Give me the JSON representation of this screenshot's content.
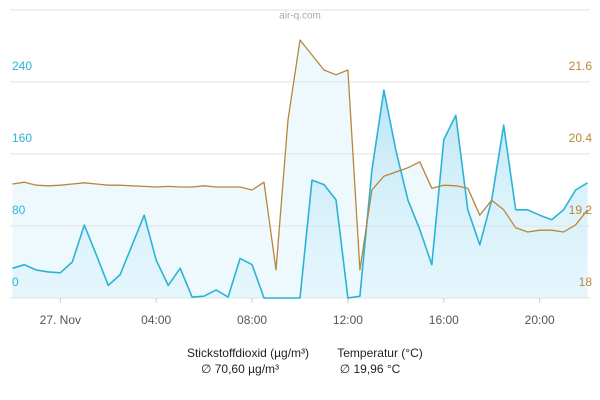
{
  "chart_data": {
    "type": "line",
    "title": "air-q.com",
    "x": [
      -2,
      -1.5,
      -1,
      -0.5,
      0,
      0.5,
      1,
      1.5,
      2,
      2.5,
      3,
      3.5,
      4,
      4.5,
      5,
      5.5,
      6,
      6.5,
      7,
      7.5,
      8,
      8.5,
      9,
      9.5,
      10,
      10.5,
      11,
      11.5,
      12,
      12.5,
      13,
      13.5,
      14,
      14.5,
      15,
      15.5,
      16,
      16.5,
      17,
      17.5,
      18,
      18.5,
      19,
      19.5,
      20,
      20.5,
      21,
      21.5,
      22
    ],
    "xlim": [
      -2.1,
      22.1
    ],
    "xticks": [
      {
        "value": 0,
        "label": "27. Nov"
      },
      {
        "value": 4,
        "label": "04:00"
      },
      {
        "value": 8,
        "label": "08:00"
      },
      {
        "value": 12,
        "label": "12:00"
      },
      {
        "value": 16,
        "label": "16:00"
      },
      {
        "value": 20,
        "label": "20:00"
      }
    ],
    "ylim": [
      0,
      320
    ],
    "yticks": [
      0,
      80,
      160,
      240
    ],
    "y2lim": [
      18,
      22.8
    ],
    "y2ticks": [
      18,
      19.2,
      20.4,
      21.6
    ],
    "grid": true,
    "series": [
      {
        "name": "Stickstoffdioxid (µg/m³)",
        "mean_label": "∅ 70,60 µg/m³",
        "color": "#2bb3d6",
        "axis": "y",
        "values": [
          33,
          37,
          31,
          29,
          28,
          40,
          81,
          48,
          14,
          26,
          59,
          92,
          42,
          14,
          33,
          1,
          2,
          9,
          1,
          44,
          37,
          0,
          0,
          0,
          0,
          131,
          126,
          109,
          0,
          2,
          142,
          231,
          164,
          109,
          76,
          37,
          176,
          203,
          98,
          59,
          109,
          192,
          98,
          98,
          92,
          87,
          98,
          120,
          128
        ]
      },
      {
        "name": "Temperatur (°C)",
        "mean_label": "∅ 19,96 °C",
        "color": "#b8863b",
        "axis": "y2",
        "values": [
          19.9,
          19.93,
          19.88,
          19.87,
          19.88,
          19.9,
          19.92,
          19.9,
          19.88,
          19.88,
          19.87,
          19.86,
          19.85,
          19.86,
          19.85,
          19.85,
          19.87,
          19.85,
          19.85,
          19.85,
          19.8,
          19.93,
          18.47,
          20.97,
          22.3,
          22.05,
          21.8,
          21.72,
          21.8,
          18.47,
          19.8,
          20.03,
          20.1,
          20.17,
          20.27,
          19.83,
          19.88,
          19.87,
          19.83,
          19.38,
          19.63,
          19.47,
          19.17,
          19.1,
          19.13,
          19.13,
          19.1,
          19.22,
          19.47
        ]
      }
    ]
  }
}
